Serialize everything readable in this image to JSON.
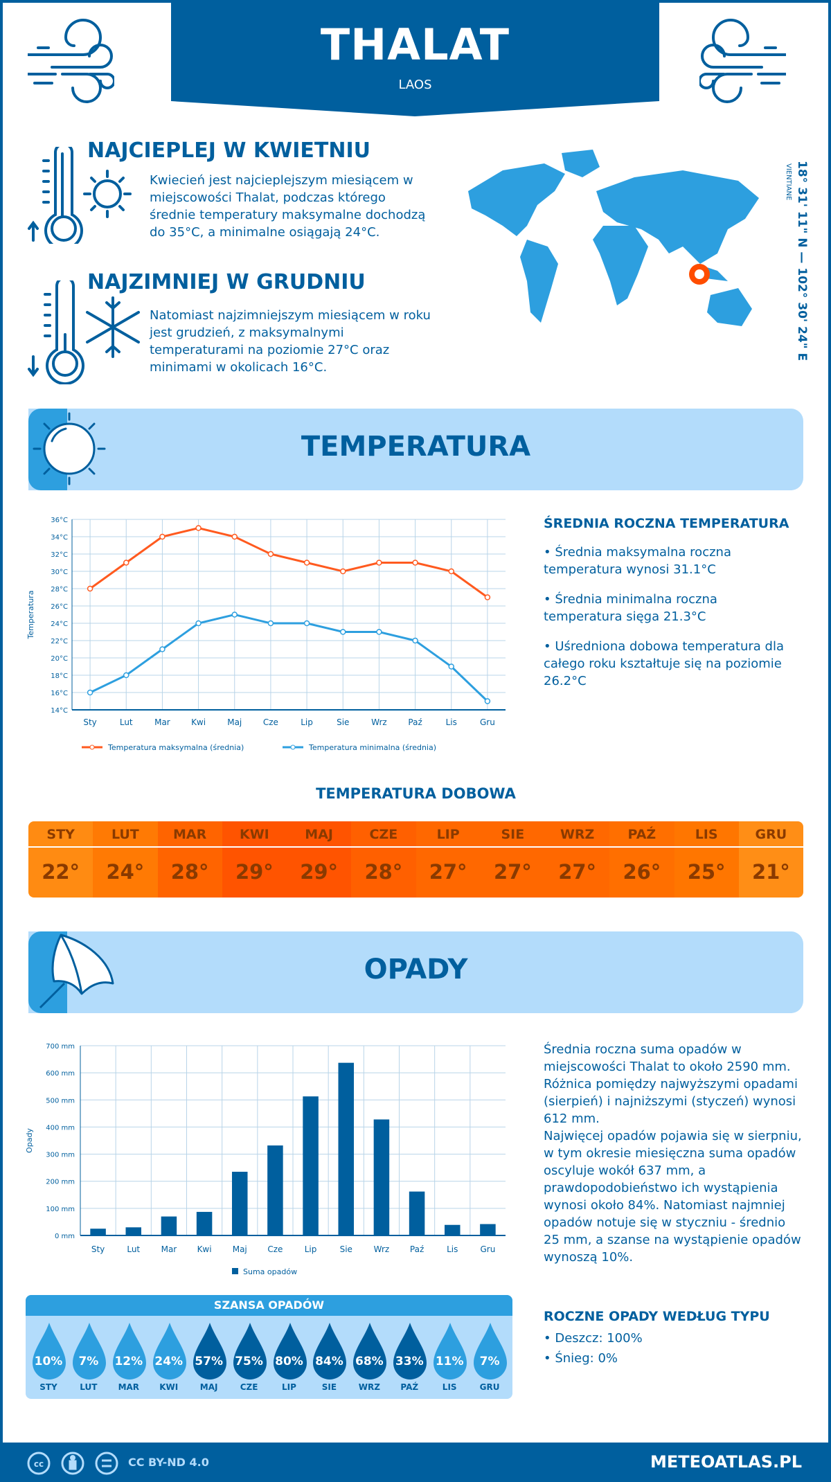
{
  "header": {
    "title": "THALAT",
    "country": "LAOS"
  },
  "warmest": {
    "title": "NAJCIEPLEJ W KWIETNIU",
    "text": "Kwiecień jest najcieplejszym miesiącem w miejscowości Thalat, podczas którego średnie temperatury maksymalne dochodzą do 35°C, a minimalne osiągają 24°C."
  },
  "coldest": {
    "title": "NAJZIMNIEJ W GRUDNIU",
    "text": "Natomiast najzimniejszym miesiącem w roku jest grudzień, z maksymalnymi temperaturami na poziomie 27°C oraz minimami w okolicach 16°C."
  },
  "location": {
    "coords": "18° 31' 11\" N — 102° 30' 24\" E",
    "region": "VIENTIANE"
  },
  "temp_section": {
    "title": "TEMPERATURA",
    "side_title": "ŚREDNIA ROCZNA TEMPERATURA",
    "bullets": [
      "• Średnia maksymalna roczna temperatura wynosi 31.1°C",
      "• Średnia minimalna roczna temperatura sięga 21.3°C",
      "• Uśredniona dobowa temperatura dla całego roku kształtuje się na poziomie 26.2°C"
    ]
  },
  "daily": {
    "title": "TEMPERATURA DOBOWA",
    "months": [
      "STY",
      "LUT",
      "MAR",
      "KWI",
      "MAJ",
      "CZE",
      "LIP",
      "SIE",
      "WRZ",
      "PAŹ",
      "LIS",
      "GRU"
    ],
    "values": [
      "22°",
      "24°",
      "28°",
      "29°",
      "29°",
      "28°",
      "27°",
      "27°",
      "27°",
      "26°",
      "25°",
      "21°"
    ],
    "colors": [
      "#ff8b12",
      "#ff7a04",
      "#ff6400",
      "#ff5400",
      "#ff5400",
      "#ff6000",
      "#ff6800",
      "#ff6800",
      "#ff6800",
      "#ff6f00",
      "#ff7600",
      "#ff8e16"
    ]
  },
  "precip_section": {
    "title": "OPADY",
    "text1": "Średnia roczna suma opadów w miejscowości Thalat to około 2590 mm. Różnica pomiędzy najwyższymi opadami (sierpień) i najniższymi (styczeń) wynosi 612 mm.",
    "text2": "Najwięcej opadów pojawia się w sierpniu, w tym okresie miesięczna suma opadów oscyluje wokół 637 mm, a prawdopodobieństwo ich wystąpienia wynosi około 84%. Natomiast najmniej opadów notuje się w styczniu - średnio 25 mm, a szanse na wystąpienie opadów wynoszą 10%.",
    "type_title": "ROCZNE OPADY WEDŁUG TYPU",
    "types": [
      "• Deszcz: 100%",
      "• Śnieg: 0%"
    ]
  },
  "chance": {
    "title": "SZANSA OPADÓW",
    "months": [
      "STY",
      "LUT",
      "MAR",
      "KWI",
      "MAJ",
      "CZE",
      "LIP",
      "SIE",
      "WRZ",
      "PAŹ",
      "LIS",
      "GRU"
    ],
    "values": [
      "10%",
      "7%",
      "12%",
      "24%",
      "57%",
      "75%",
      "80%",
      "84%",
      "68%",
      "33%",
      "11%",
      "7%"
    ],
    "light": "#2d9fdf",
    "dark": "#005f9e"
  },
  "footer": {
    "license": "CC BY-ND 4.0",
    "site": "METEOATLAS.PL"
  },
  "colors": {
    "primary": "#005f9e",
    "accent": "#2d9fdf",
    "pale": "#b3dcfb",
    "max_line": "#ff5a1f"
  },
  "chart_data": [
    {
      "type": "line",
      "categories": [
        "Sty",
        "Lut",
        "Mar",
        "Kwi",
        "Maj",
        "Cze",
        "Lip",
        "Sie",
        "Wrz",
        "Paź",
        "Lis",
        "Gru"
      ],
      "ylabel": "Temperatura",
      "ylim": [
        14,
        36
      ],
      "yticks": [
        "14°C",
        "16°C",
        "18°C",
        "20°C",
        "22°C",
        "24°C",
        "26°C",
        "28°C",
        "30°C",
        "32°C",
        "34°C",
        "36°C"
      ],
      "grid": true,
      "legend": "bottom",
      "series": [
        {
          "name": "Temperatura maksymalna (średnia)",
          "values": [
            28,
            31,
            34,
            35,
            34,
            32,
            31,
            30,
            31,
            31,
            30,
            27
          ],
          "color": "#ff5a1f"
        },
        {
          "name": "Temperatura minimalna (średnia)",
          "values": [
            16,
            18,
            21,
            24,
            25,
            24,
            24,
            23,
            23,
            22,
            19,
            15
          ],
          "color": "#2d9fdf"
        }
      ]
    },
    {
      "type": "bar",
      "categories": [
        "Sty",
        "Lut",
        "Mar",
        "Kwi",
        "Maj",
        "Cze",
        "Lip",
        "Sie",
        "Wrz",
        "Paź",
        "Lis",
        "Gru"
      ],
      "ylabel": "Opady",
      "ylim": [
        0,
        700
      ],
      "yticks": [
        "0 mm",
        "100 mm",
        "200 mm",
        "300 mm",
        "400 mm",
        "500 mm",
        "600 mm",
        "700 mm"
      ],
      "grid": true,
      "legend": "bottom",
      "series": [
        {
          "name": "Suma opadów",
          "values": [
            25,
            30,
            70,
            87,
            235,
            332,
            513,
            637,
            428,
            162,
            39,
            42
          ],
          "color": "#005f9e"
        }
      ]
    }
  ]
}
